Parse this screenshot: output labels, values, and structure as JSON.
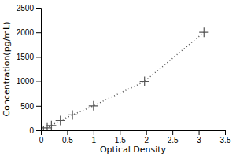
{
  "chart_data": {
    "type": "line",
    "x": [
      0.05,
      0.12,
      0.2,
      0.37,
      0.6,
      1.0,
      1.97,
      3.1
    ],
    "values": [
      0,
      50,
      100,
      200,
      313,
      500,
      1000,
      2000
    ],
    "xlabel": "Optical Density",
    "ylabel": "Concentration(pg/mL)",
    "xlim": [
      0,
      3.5
    ],
    "ylim": [
      0,
      2500
    ],
    "xticks": [
      0,
      0.5,
      1,
      1.5,
      2,
      2.5,
      3,
      3.5
    ],
    "yticks": [
      0,
      500,
      1000,
      1500,
      2000,
      2500
    ],
    "color": "#555555",
    "marker": "plus",
    "line_style": "dotted",
    "grid": false
  }
}
